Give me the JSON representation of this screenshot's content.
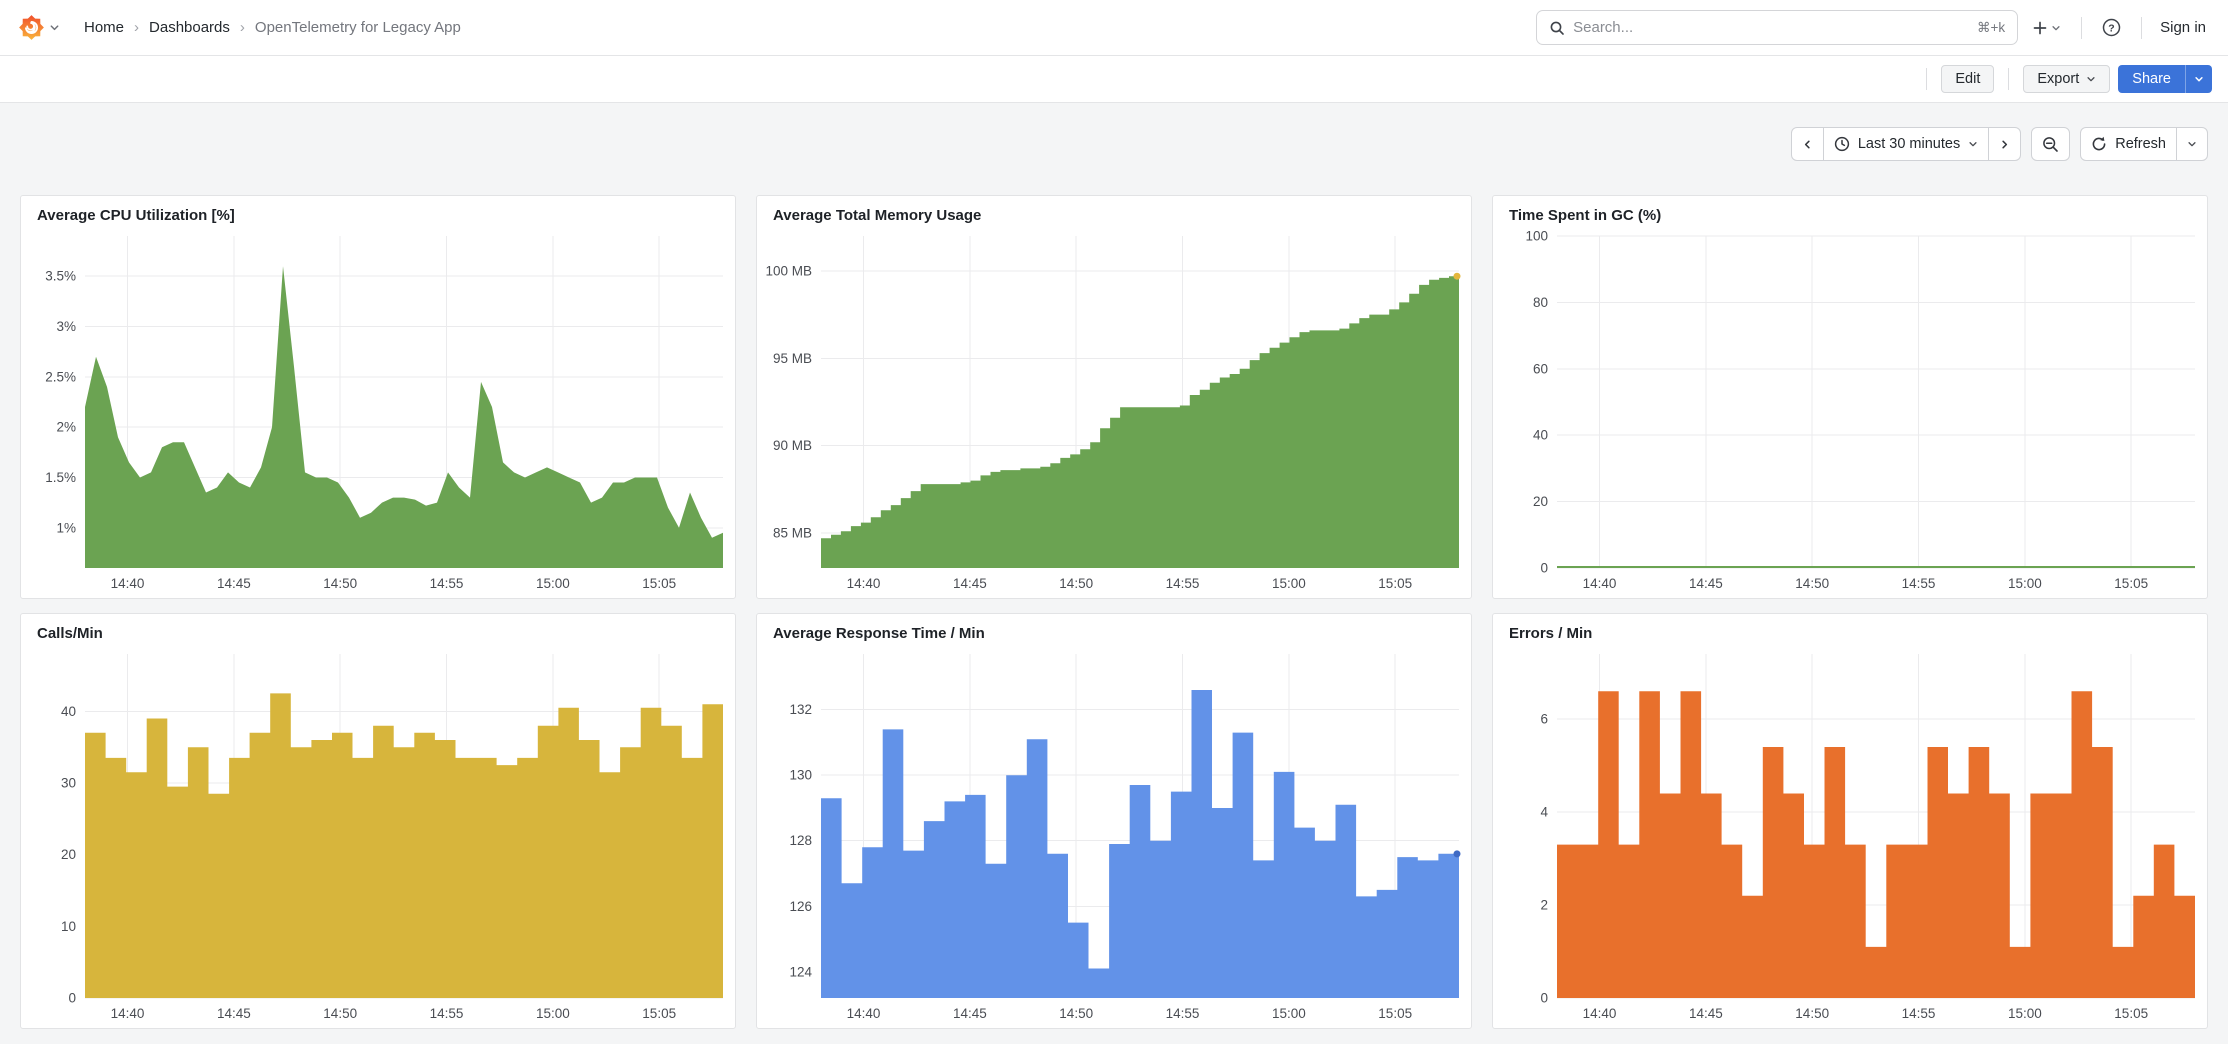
{
  "header": {
    "breadcrumb": {
      "items": [
        "Home",
        "Dashboards",
        "OpenTelemetry for Legacy App"
      ],
      "separator": "›"
    },
    "search": {
      "placeholder": "Search...",
      "shortcut": "⌘+k"
    },
    "help_glyph": "?",
    "sign_in_label": "Sign in"
  },
  "toolbar": {
    "edit_label": "Edit",
    "export_label": "Export",
    "share_label": "Share"
  },
  "timebar": {
    "range_label": "Last 30 minutes",
    "refresh_label": "Refresh"
  },
  "colors": {
    "green": "#6ba352",
    "yellow": "#d7b53c",
    "blue": "#6292e8",
    "orange": "#e8702c",
    "primary_blue": "#3b73d9"
  },
  "chart_data": [
    {
      "type": "area-line",
      "title": "Average CPU Utilization [%]",
      "color": "#6ba352",
      "x_range": [
        0,
        30
      ],
      "y_range": [
        0.6,
        3.9
      ],
      "x_ticks": [
        {
          "v": 2,
          "label": "14:40"
        },
        {
          "v": 7,
          "label": "14:45"
        },
        {
          "v": 12,
          "label": "14:50"
        },
        {
          "v": 17,
          "label": "14:55"
        },
        {
          "v": 22,
          "label": "15:00"
        },
        {
          "v": 27,
          "label": "15:05"
        }
      ],
      "y_ticks": [
        {
          "v": 1,
          "label": "1%"
        },
        {
          "v": 1.5,
          "label": "1.5%"
        },
        {
          "v": 2,
          "label": "2%"
        },
        {
          "v": 2.5,
          "label": "2.5%"
        },
        {
          "v": 3,
          "label": "3%"
        },
        {
          "v": 3.5,
          "label": "3.5%"
        }
      ],
      "values": [
        2.2,
        2.7,
        2.4,
        1.9,
        1.65,
        1.5,
        1.55,
        1.8,
        1.85,
        1.85,
        1.6,
        1.35,
        1.4,
        1.55,
        1.45,
        1.4,
        1.6,
        2.0,
        3.6,
        2.6,
        1.55,
        1.5,
        1.5,
        1.45,
        1.3,
        1.1,
        1.15,
        1.25,
        1.3,
        1.3,
        1.28,
        1.22,
        1.25,
        1.55,
        1.4,
        1.3,
        2.45,
        2.2,
        1.65,
        1.55,
        1.5,
        1.55,
        1.6,
        1.55,
        1.5,
        1.45,
        1.25,
        1.3,
        1.45,
        1.45,
        1.5,
        1.5,
        1.5,
        1.2,
        1.0,
        1.35,
        1.1,
        0.9,
        0.95
      ]
    },
    {
      "type": "area-step",
      "title": "Average Total Memory Usage",
      "color": "#6ba352",
      "end_dot": "#e3b63c",
      "x_range": [
        0,
        30
      ],
      "y_range": [
        83,
        102
      ],
      "x_ticks": [
        {
          "v": 2,
          "label": "14:40"
        },
        {
          "v": 7,
          "label": "14:45"
        },
        {
          "v": 12,
          "label": "14:50"
        },
        {
          "v": 17,
          "label": "14:55"
        },
        {
          "v": 22,
          "label": "15:00"
        },
        {
          "v": 27,
          "label": "15:05"
        }
      ],
      "y_ticks": [
        {
          "v": 85,
          "label": "85 MB"
        },
        {
          "v": 90,
          "label": "90 MB"
        },
        {
          "v": 95,
          "label": "95 MB"
        },
        {
          "v": 100,
          "label": "100 MB"
        }
      ],
      "values": [
        84.7,
        84.9,
        85.1,
        85.4,
        85.6,
        85.9,
        86.3,
        86.6,
        87.0,
        87.4,
        87.8,
        87.8,
        87.8,
        87.8,
        87.9,
        88.0,
        88.3,
        88.5,
        88.6,
        88.6,
        88.7,
        88.7,
        88.8,
        89.0,
        89.3,
        89.5,
        89.8,
        90.2,
        91.0,
        91.6,
        92.2,
        92.2,
        92.2,
        92.2,
        92.2,
        92.2,
        92.3,
        92.9,
        93.2,
        93.6,
        93.9,
        94.1,
        94.4,
        94.9,
        95.3,
        95.6,
        95.9,
        96.2,
        96.5,
        96.6,
        96.6,
        96.6,
        96.7,
        97.0,
        97.3,
        97.5,
        97.5,
        97.8,
        98.2,
        98.7,
        99.2,
        99.5,
        99.6,
        99.7
      ]
    },
    {
      "type": "line",
      "title": "Time Spent in GC (%)",
      "color": "#6ba352",
      "x_range": [
        0,
        30
      ],
      "y_range": [
        0,
        100
      ],
      "x_ticks": [
        {
          "v": 2,
          "label": "14:40"
        },
        {
          "v": 7,
          "label": "14:45"
        },
        {
          "v": 12,
          "label": "14:50"
        },
        {
          "v": 17,
          "label": "14:55"
        },
        {
          "v": 22,
          "label": "15:00"
        },
        {
          "v": 27,
          "label": "15:05"
        }
      ],
      "y_ticks": [
        {
          "v": 0,
          "label": "0"
        },
        {
          "v": 20,
          "label": "20"
        },
        {
          "v": 40,
          "label": "40"
        },
        {
          "v": 60,
          "label": "60"
        },
        {
          "v": 80,
          "label": "80"
        },
        {
          "v": 100,
          "label": "100"
        }
      ],
      "values": [
        0,
        0
      ]
    },
    {
      "type": "area-step",
      "title": "Calls/Min",
      "color": "#d7b53c",
      "x_range": [
        0,
        30
      ],
      "y_range": [
        0,
        48
      ],
      "x_ticks": [
        {
          "v": 2,
          "label": "14:40"
        },
        {
          "v": 7,
          "label": "14:45"
        },
        {
          "v": 12,
          "label": "14:50"
        },
        {
          "v": 17,
          "label": "14:55"
        },
        {
          "v": 22,
          "label": "15:00"
        },
        {
          "v": 27,
          "label": "15:05"
        }
      ],
      "y_ticks": [
        {
          "v": 0,
          "label": "0"
        },
        {
          "v": 10,
          "label": "10"
        },
        {
          "v": 20,
          "label": "20"
        },
        {
          "v": 30,
          "label": "30"
        },
        {
          "v": 40,
          "label": "40"
        }
      ],
      "values": [
        37,
        33.5,
        31.5,
        39,
        29.5,
        35,
        28.5,
        33.5,
        37,
        42.5,
        35,
        36,
        37,
        33.5,
        38,
        35,
        37,
        36,
        33.5,
        33.5,
        32.5,
        33.5,
        38,
        40.5,
        36,
        31.5,
        35,
        40.5,
        38,
        33.5,
        41
      ]
    },
    {
      "type": "area-step",
      "title": "Average Response Time / Min",
      "color": "#6292e8",
      "end_dot": "#3f6ac4",
      "x_range": [
        0,
        30
      ],
      "y_range": [
        123.2,
        133.7
      ],
      "x_ticks": [
        {
          "v": 2,
          "label": "14:40"
        },
        {
          "v": 7,
          "label": "14:45"
        },
        {
          "v": 12,
          "label": "14:50"
        },
        {
          "v": 17,
          "label": "14:55"
        },
        {
          "v": 22,
          "label": "15:00"
        },
        {
          "v": 27,
          "label": "15:05"
        }
      ],
      "y_ticks": [
        {
          "v": 124,
          "label": "124"
        },
        {
          "v": 126,
          "label": "126"
        },
        {
          "v": 128,
          "label": "128"
        },
        {
          "v": 130,
          "label": "130"
        },
        {
          "v": 132,
          "label": "132"
        }
      ],
      "values": [
        129.3,
        126.7,
        127.8,
        131.4,
        127.7,
        128.6,
        129.2,
        129.4,
        127.3,
        130.0,
        131.1,
        127.6,
        125.5,
        124.1,
        127.9,
        129.7,
        128.0,
        129.5,
        132.6,
        129.0,
        131.3,
        127.4,
        130.1,
        128.4,
        128.0,
        129.1,
        126.3,
        126.5,
        127.5,
        127.4,
        127.6
      ]
    },
    {
      "type": "area-step",
      "title": "Errors / Min",
      "color": "#e8702c",
      "x_range": [
        0,
        30
      ],
      "y_range": [
        0,
        7.4
      ],
      "x_ticks": [
        {
          "v": 2,
          "label": "14:40"
        },
        {
          "v": 7,
          "label": "14:45"
        },
        {
          "v": 12,
          "label": "14:50"
        },
        {
          "v": 17,
          "label": "14:55"
        },
        {
          "v": 22,
          "label": "15:00"
        },
        {
          "v": 27,
          "label": "15:05"
        }
      ],
      "y_ticks": [
        {
          "v": 0,
          "label": "0"
        },
        {
          "v": 2,
          "label": "2"
        },
        {
          "v": 4,
          "label": "4"
        },
        {
          "v": 6,
          "label": "6"
        }
      ],
      "values": [
        3.3,
        3.3,
        6.6,
        3.3,
        6.6,
        4.4,
        6.6,
        4.4,
        3.3,
        2.2,
        5.4,
        4.4,
        3.3,
        5.4,
        3.3,
        1.1,
        3.3,
        3.3,
        5.4,
        4.4,
        5.4,
        4.4,
        1.1,
        4.4,
        4.4,
        6.6,
        5.4,
        1.1,
        2.2,
        3.3,
        2.2
      ]
    }
  ]
}
